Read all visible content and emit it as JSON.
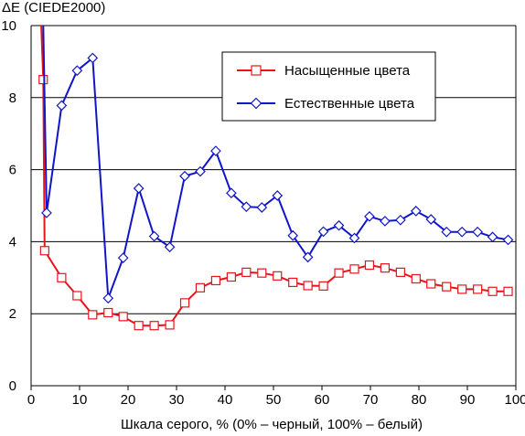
{
  "chart_data": {
    "type": "line",
    "ylabel": "ΔE (CIEDE2000)",
    "xlabel": "Шкала серого, % (0% – черный, 100% – белый)",
    "xlim": [
      0,
      100
    ],
    "ylim": [
      0,
      10
    ],
    "x_ticks": [
      "0",
      "10",
      "20",
      "30",
      "40",
      "50",
      "60",
      "70",
      "80",
      "90",
      "100"
    ],
    "y_ticks": [
      "0",
      "2",
      "4",
      "6",
      "8",
      "10"
    ],
    "grid": "horizontal",
    "legend_position": "top-right",
    "series": [
      {
        "name": "Насыщенные цвета",
        "color": "#e8141c",
        "marker": "square",
        "points": [
          [
            2.1,
            10.0
          ],
          [
            2.5,
            8.5
          ],
          [
            2.8,
            3.75
          ],
          [
            6.3,
            3.0
          ],
          [
            9.5,
            2.5
          ],
          [
            12.7,
            1.97
          ],
          [
            15.9,
            2.03
          ],
          [
            19.0,
            1.92
          ],
          [
            22.2,
            1.67
          ],
          [
            25.4,
            1.67
          ],
          [
            28.6,
            1.69
          ],
          [
            31.7,
            2.3
          ],
          [
            34.9,
            2.72
          ],
          [
            38.1,
            2.92
          ],
          [
            41.3,
            3.02
          ],
          [
            44.4,
            3.15
          ],
          [
            47.6,
            3.13
          ],
          [
            50.8,
            3.05
          ],
          [
            54.0,
            2.87
          ],
          [
            57.1,
            2.78
          ],
          [
            60.3,
            2.77
          ],
          [
            63.5,
            3.13
          ],
          [
            66.7,
            3.24
          ],
          [
            69.8,
            3.35
          ],
          [
            73.0,
            3.27
          ],
          [
            76.2,
            3.15
          ],
          [
            79.4,
            2.97
          ],
          [
            82.5,
            2.83
          ],
          [
            85.7,
            2.75
          ],
          [
            88.9,
            2.68
          ],
          [
            92.1,
            2.68
          ],
          [
            95.2,
            2.62
          ],
          [
            98.4,
            2.62
          ]
        ]
      },
      {
        "name": "Естественные цвета",
        "color": "#1016c8",
        "marker": "diamond",
        "points": [
          [
            2.5,
            10.0
          ],
          [
            3.2,
            4.8
          ],
          [
            6.3,
            7.78
          ],
          [
            9.5,
            8.75
          ],
          [
            12.7,
            9.1
          ],
          [
            15.9,
            2.43
          ],
          [
            19.0,
            3.55
          ],
          [
            22.2,
            5.48
          ],
          [
            25.4,
            4.15
          ],
          [
            28.6,
            3.85
          ],
          [
            31.7,
            5.82
          ],
          [
            34.9,
            5.95
          ],
          [
            38.1,
            6.52
          ],
          [
            41.3,
            5.35
          ],
          [
            44.4,
            4.97
          ],
          [
            47.6,
            4.95
          ],
          [
            50.8,
            5.28
          ],
          [
            54.0,
            4.17
          ],
          [
            57.1,
            3.57
          ],
          [
            60.3,
            4.28
          ],
          [
            63.5,
            4.45
          ],
          [
            66.7,
            4.1
          ],
          [
            69.8,
            4.7
          ],
          [
            73.0,
            4.57
          ],
          [
            76.2,
            4.6
          ],
          [
            79.4,
            4.85
          ],
          [
            82.5,
            4.62
          ],
          [
            85.7,
            4.27
          ],
          [
            88.9,
            4.27
          ],
          [
            92.1,
            4.27
          ],
          [
            95.2,
            4.13
          ],
          [
            98.4,
            4.05
          ]
        ]
      }
    ]
  }
}
